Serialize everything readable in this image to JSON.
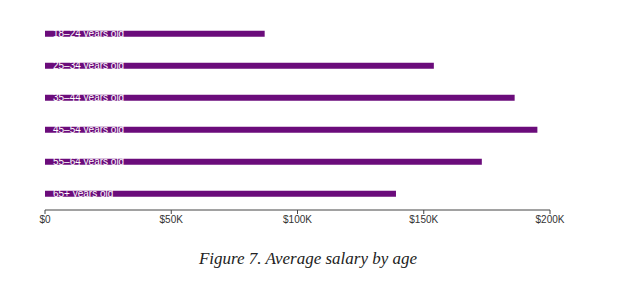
{
  "chart_data": {
    "type": "bar",
    "title": "Figure 7. Average salary by age",
    "orientation": "horizontal",
    "categories": [
      "18–24 years old",
      "25–34 years old",
      "35–44 years old",
      "45–54 years old",
      "55–64 years old",
      "65+ years old"
    ],
    "values": [
      87000,
      154000,
      186000,
      195000,
      173000,
      139000
    ],
    "color": "#6b0c7b",
    "xlim": [
      0,
      200000
    ],
    "xticks": [
      {
        "value": 0,
        "label": "$0"
      },
      {
        "value": 50000,
        "label": "$50K"
      },
      {
        "value": 100000,
        "label": "$100K"
      },
      {
        "value": 150000,
        "label": "$150K"
      },
      {
        "value": 200000,
        "label": "$200K"
      }
    ],
    "grid": false
  }
}
